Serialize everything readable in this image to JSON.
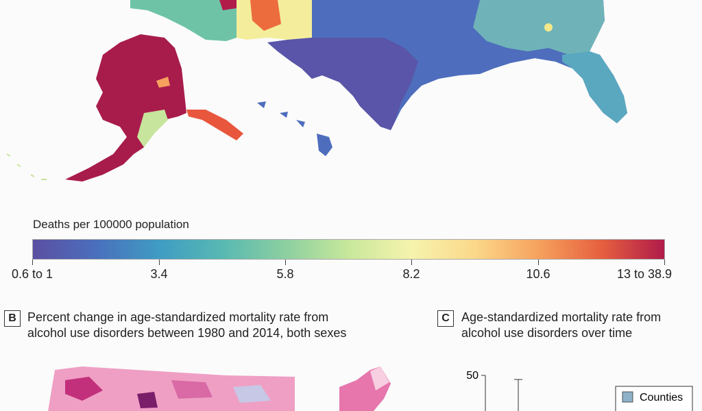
{
  "panel_a": {
    "legend_title": "Deaths per 100000 population",
    "colorbar_ticks": [
      "0.6 to 1",
      "3.4",
      "5.8",
      "8.2",
      "10.6",
      "13 to 38.9"
    ],
    "colors": [
      "#5b4fa2",
      "#3f9cc3",
      "#8ccfa0",
      "#f6f3ad",
      "#f6a25e",
      "#b01b4a"
    ]
  },
  "panel_b": {
    "letter": "B",
    "title_line1": "Percent change in age-standardized mortality rate from",
    "title_line2": "alcohol use disorders between 1980 and 2014, both sexes"
  },
  "panel_c": {
    "letter": "C",
    "title_line1": "Age-standardized mortality rate from",
    "title_line2": "alcohol use disorders over time",
    "y_tick_top": "50",
    "legend_counties": "Counties"
  }
}
